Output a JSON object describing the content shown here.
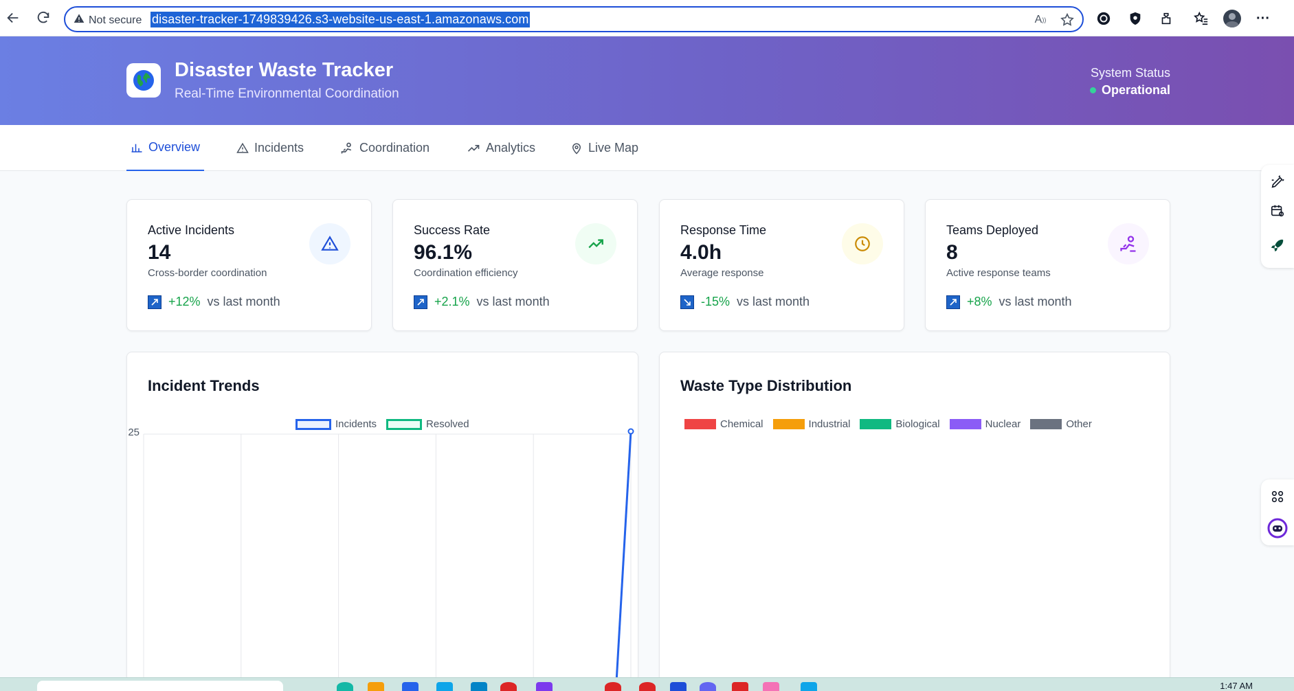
{
  "browser": {
    "security_label": "Not secure",
    "url": "disaster-tracker-1749839426.s3-website-us-east-1.amazonaws.com",
    "icons": [
      "back-icon",
      "refresh-icon",
      "warning-icon",
      "read-aloud-icon",
      "favorite-star-icon",
      "copilot-extension-icon",
      "shield-extension-icon",
      "extensions-puzzle-icon",
      "favorites-icon",
      "profile-avatar",
      "more-menu-icon"
    ]
  },
  "header": {
    "title": "Disaster Waste Tracker",
    "subtitle": "Real-Time Environmental Coordination",
    "status_label": "System Status",
    "status_value": "Operational",
    "logo_icon": "globe-icon"
  },
  "tabs": [
    {
      "label": "Overview",
      "icon": "bar-chart-icon",
      "active": true
    },
    {
      "label": "Incidents",
      "icon": "warning-triangle-icon",
      "active": false
    },
    {
      "label": "Coordination",
      "icon": "team-icon",
      "active": false
    },
    {
      "label": "Analytics",
      "icon": "trend-icon",
      "active": false
    },
    {
      "label": "Live Map",
      "icon": "map-pin-icon",
      "active": false
    }
  ],
  "stats": [
    {
      "title": "Active Incidents",
      "value": "14",
      "desc": "Cross-border coordination",
      "trend": "+12%",
      "trend_suffix": "vs last month",
      "icon": "alert-triangle-icon",
      "icon_color": "#1d4ed8",
      "icon_bg": "#eff6ff"
    },
    {
      "title": "Success Rate",
      "value": "96.1%",
      "desc": "Coordination efficiency",
      "trend": "+2.1%",
      "trend_suffix": "vs last month",
      "icon": "trending-up-icon",
      "icon_color": "#16a34a",
      "icon_bg": "#f0fdf4"
    },
    {
      "title": "Response Time",
      "value": "4.0h",
      "desc": "Average response",
      "trend": "-15%",
      "trend_suffix": "vs last month",
      "icon": "clock-icon",
      "icon_color": "#ca8a04",
      "icon_bg": "#fefce8"
    },
    {
      "title": "Teams Deployed",
      "value": "8",
      "desc": "Active response teams",
      "trend": "+8%",
      "trend_suffix": "vs last month",
      "icon": "team-icon",
      "icon_color": "#9333ea",
      "icon_bg": "#faf5ff"
    }
  ],
  "incident_chart_title": "Incident Trends",
  "waste_chart_title": "Waste Type Distribution",
  "chart_data": [
    {
      "type": "line",
      "title": "Incident Trends",
      "ylim": [
        0,
        25
      ],
      "y_ticks": [
        "25"
      ],
      "grid": true,
      "legend_position": "top-center",
      "series": [
        {
          "name": "Incidents",
          "color": "#2563eb",
          "values": [
            25
          ]
        },
        {
          "name": "Resolved",
          "color": "#10b981",
          "values": []
        }
      ]
    },
    {
      "type": "pie",
      "title": "Waste Type Distribution",
      "legend_position": "top-center",
      "categories": [
        "Chemical",
        "Industrial",
        "Biological",
        "Nuclear",
        "Other"
      ],
      "colors": [
        "#ef4444",
        "#f59e0b",
        "#10b981",
        "#8b5cf6",
        "#6b7280"
      ]
    }
  ],
  "taskbar": {
    "time": "1:47 AM"
  }
}
